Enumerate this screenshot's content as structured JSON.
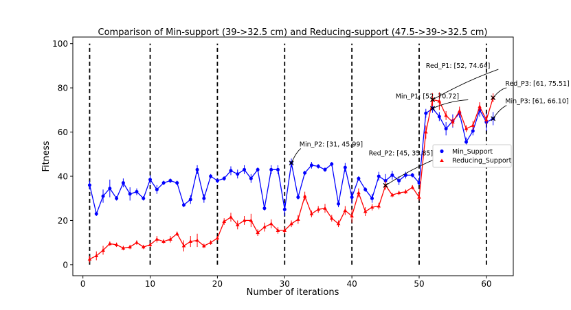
{
  "chart_data": {
    "type": "line",
    "title": "Comparison of Min-support (39->32.5 cm) and Reducing-support (47.5->39->32.5 cm)",
    "xlabel": "Number of iterations",
    "ylabel": "Fitness",
    "xlim": [
      -1.5,
      64
    ],
    "ylim": [
      -5,
      103
    ],
    "xticks": [
      0,
      10,
      20,
      30,
      40,
      50,
      60
    ],
    "yticks": [
      0,
      20,
      40,
      60,
      80,
      100
    ],
    "vlines": [
      1,
      10,
      20,
      30,
      40,
      50,
      60
    ],
    "vline_range": [
      0,
      100
    ],
    "legend": {
      "position": "center-right",
      "entries": [
        "Min_Support",
        "Reducing_Support"
      ]
    },
    "series": [
      {
        "name": "Min_Support",
        "color": "#0000ff",
        "marker": "circle",
        "x": [
          1,
          2,
          3,
          4,
          5,
          6,
          7,
          8,
          9,
          10,
          11,
          12,
          13,
          14,
          15,
          16,
          17,
          18,
          19,
          20,
          21,
          22,
          23,
          24,
          25,
          26,
          27,
          28,
          29,
          30,
          31,
          32,
          33,
          34,
          35,
          36,
          37,
          38,
          39,
          40,
          41,
          42,
          43,
          44,
          45,
          46,
          47,
          48,
          49,
          50,
          51,
          52,
          53,
          54,
          55,
          56,
          57,
          58,
          59,
          60,
          61
        ],
        "y": [
          36,
          23,
          31,
          34.5,
          30,
          37,
          32,
          33,
          30,
          38.5,
          34,
          37,
          38,
          37,
          27,
          29.5,
          43,
          30,
          40,
          38,
          39,
          42.5,
          41,
          43,
          39,
          43,
          25.5,
          43,
          43,
          25,
          46,
          30.5,
          41.5,
          45,
          44.5,
          43,
          45.5,
          27.5,
          44,
          30.5,
          39,
          34,
          30,
          40,
          38,
          40.5,
          38,
          40.5,
          40.5,
          37,
          68.5,
          70.7,
          67,
          61.5,
          65,
          68.5,
          55.5,
          60.5,
          70,
          64.5,
          66.1
        ],
        "err": [
          2,
          1,
          3,
          4,
          1,
          2,
          3,
          1.5,
          1,
          2,
          2,
          1,
          1,
          1,
          1,
          2,
          2,
          2,
          1,
          1,
          1,
          2,
          2,
          2,
          2,
          1,
          1,
          2,
          2,
          3,
          2,
          1,
          1,
          1.5,
          1,
          1,
          1,
          1.5,
          2,
          3,
          1,
          1,
          2,
          2,
          3,
          2,
          2,
          1.5,
          1,
          1,
          2,
          2,
          2,
          3,
          3,
          2,
          2,
          2,
          3,
          4,
          3
        ]
      },
      {
        "name": "Reducing_Support",
        "color": "#ff0000",
        "marker": "triangle",
        "x": [
          1,
          2,
          3,
          4,
          5,
          6,
          7,
          8,
          9,
          10,
          11,
          12,
          13,
          14,
          15,
          16,
          17,
          18,
          19,
          20,
          21,
          22,
          23,
          24,
          25,
          26,
          27,
          28,
          29,
          30,
          31,
          32,
          33,
          34,
          35,
          36,
          37,
          38,
          39,
          40,
          41,
          42,
          43,
          44,
          45,
          46,
          47,
          48,
          49,
          50,
          51,
          52,
          53,
          54,
          55,
          56,
          57,
          58,
          59,
          60,
          61
        ],
        "y": [
          2.5,
          4,
          6.5,
          9.5,
          9,
          7.5,
          8,
          10,
          8,
          9,
          11.5,
          10.5,
          11.5,
          14,
          8.5,
          10.5,
          11,
          8.5,
          10,
          12,
          19.5,
          21.5,
          18,
          20,
          20,
          14.5,
          17,
          18.5,
          15.5,
          15.5,
          18.5,
          20.5,
          31,
          23,
          25,
          25.5,
          21,
          18.5,
          24.5,
          22,
          32.5,
          24,
          26,
          26.5,
          35.9,
          31.5,
          32.5,
          33,
          35,
          30.5,
          60,
          74.64,
          74,
          67.5,
          64.5,
          69.5,
          61.5,
          63,
          71.5,
          65.5,
          75.51
        ],
        "err": [
          1.5,
          2,
          2,
          1,
          1,
          1,
          1,
          1,
          1,
          1,
          1.5,
          1,
          1.5,
          1,
          2.5,
          2.5,
          3,
          1,
          1,
          1,
          1.5,
          2,
          2,
          2,
          3,
          1.5,
          2,
          2,
          1.5,
          1.5,
          1.5,
          2,
          2,
          1.5,
          1.5,
          2,
          1.5,
          1.5,
          2,
          3,
          2,
          2,
          1.5,
          1.5,
          2,
          1,
          1,
          1,
          1,
          1.5,
          3,
          3,
          4,
          2,
          2,
          2,
          1.5,
          2,
          2,
          2,
          2
        ]
      }
    ],
    "annotations": [
      {
        "text": "Min_P1: [52, 70.72]",
        "x": 52,
        "y": 70.72,
        "text_x": 46.5,
        "text_y": 75.2
      },
      {
        "text": "Red_P1: [52, 74.64]",
        "x": 52,
        "y": 74.64,
        "text_x": 51,
        "text_y": 89
      },
      {
        "text": "Min_P2: [31, 45.99]",
        "x": 31,
        "y": 45.99,
        "text_x": 32.2,
        "text_y": 53.5
      },
      {
        "text": "Red_P2: [45, 35.85]",
        "x": 45,
        "y": 35.85,
        "text_x": 42.5,
        "text_y": 49.5
      },
      {
        "text": "Red_P3: [61, 75.51]",
        "x": 61,
        "y": 75.51,
        "text_x": 62.8,
        "text_y": 81
      },
      {
        "text": "Min_P3: [61, 66.10]",
        "x": 61,
        "y": 66.1,
        "text_x": 62.8,
        "text_y": 73
      }
    ]
  }
}
